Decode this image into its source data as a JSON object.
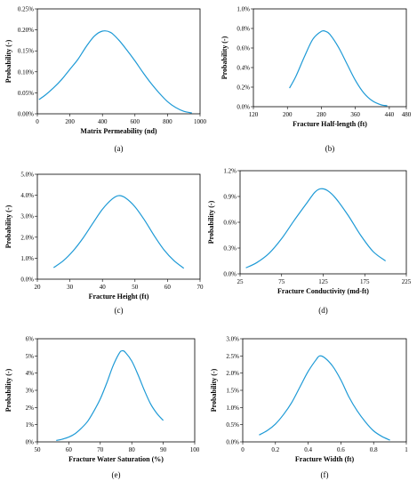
{
  "figure": {
    "panels": [
      "(a)",
      "(b)",
      "(c)",
      "(d)",
      "(e)",
      "(f)"
    ]
  },
  "colors": {
    "curve": "#1e9ad6",
    "axis": "#000000"
  },
  "chart_data": [
    {
      "type": "line",
      "xlabel": "Matrix Permeability (nd)",
      "ylabel": "Probability (-)",
      "xlim": [
        0,
        1000
      ],
      "ylim": [
        0,
        0.0025
      ],
      "xticks": [
        "0",
        "200",
        "400",
        "600",
        "800",
        "1000"
      ],
      "yticks": [
        "0.00%",
        "0.05%",
        "0.10%",
        "0.15%",
        "0.20%",
        "0.25%"
      ],
      "series": [
        {
          "x": [
            10,
            50,
            100,
            150,
            200,
            250,
            300,
            350,
            400,
            450,
            500,
            550,
            600,
            650,
            700,
            750,
            800,
            850,
            900,
            950
          ],
          "values": [
            0.00034,
            0.00045,
            0.00062,
            0.00082,
            0.00106,
            0.0013,
            0.0016,
            0.00185,
            0.00197,
            0.00194,
            0.00176,
            0.00152,
            0.00126,
            0.00098,
            0.00072,
            0.00049,
            0.00029,
            0.00015,
            6e-05,
            2e-05
          ]
        }
      ]
    },
    {
      "type": "line",
      "xlabel": "Fracture Half-length (ft)",
      "ylabel": "Probability (-)",
      "xlim": [
        120,
        480
      ],
      "ylim": [
        0,
        0.01
      ],
      "xticks": [
        "120",
        "200",
        "280",
        "360",
        "440",
        "480"
      ],
      "xtick_values": [
        120,
        200,
        280,
        360,
        440,
        480
      ],
      "yticks": [
        "0.0%",
        "0.2%",
        "0.4%",
        "0.6%",
        "0.8%",
        "1.0%"
      ],
      "series": [
        {
          "x": [
            205,
            220,
            240,
            260,
            280,
            290,
            300,
            320,
            340,
            360,
            380,
            400,
            420,
            435
          ],
          "values": [
            0.0019,
            0.0031,
            0.0051,
            0.0069,
            0.0077,
            0.0077,
            0.0074,
            0.0061,
            0.0044,
            0.0027,
            0.0014,
            0.0006,
            0.0002,
            0.0001
          ]
        }
      ]
    },
    {
      "type": "line",
      "xlabel": "Fracture Height (ft)",
      "ylabel": "Probability (-)",
      "xlim": [
        20,
        70
      ],
      "ylim": [
        0,
        0.05
      ],
      "xticks": [
        "20",
        "30",
        "40",
        "50",
        "60",
        "70"
      ],
      "yticks": [
        "0.0%",
        "1.0%",
        "2.0%",
        "3.0%",
        "4.0%",
        "5.0%"
      ],
      "series": [
        {
          "x": [
            25,
            28,
            31,
            34,
            37,
            40,
            43,
            45,
            47,
            50,
            53,
            56,
            59,
            62,
            65
          ],
          "values": [
            0.0055,
            0.0088,
            0.0135,
            0.0195,
            0.0265,
            0.0333,
            0.0382,
            0.0398,
            0.0388,
            0.0345,
            0.028,
            0.0205,
            0.0138,
            0.0088,
            0.0052
          ]
        }
      ]
    },
    {
      "type": "line",
      "xlabel": "Fracture Conductivity (md-ft)",
      "ylabel": "Probability (-)",
      "xlim": [
        25,
        225
      ],
      "ylim": [
        0,
        0.012
      ],
      "xticks": [
        "25",
        "75",
        "125",
        "175",
        "225"
      ],
      "yticks": [
        "0.0%",
        "0.3%",
        "0.6%",
        "0.9%",
        "1.2%"
      ],
      "series": [
        {
          "x": [
            32,
            45,
            60,
            75,
            90,
            105,
            115,
            122,
            130,
            140,
            155,
            170,
            185,
            200
          ],
          "values": [
            0.0007,
            0.0013,
            0.0024,
            0.0041,
            0.0062,
            0.0082,
            0.0095,
            0.0099,
            0.0097,
            0.0088,
            0.0068,
            0.0045,
            0.0026,
            0.0015
          ]
        }
      ]
    },
    {
      "type": "line",
      "xlabel": "Fracture Water Saturation (%)",
      "ylabel": "Probability (-)",
      "xlim": [
        50,
        100
      ],
      "ylim": [
        0,
        0.06
      ],
      "xticks": [
        "50",
        "60",
        "70",
        "80",
        "90",
        "100"
      ],
      "yticks": [
        "0%",
        "1%",
        "2%",
        "3%",
        "4%",
        "5%",
        "6%"
      ],
      "series": [
        {
          "x": [
            56,
            58,
            60,
            62,
            64,
            66,
            68,
            70,
            72,
            74,
            76,
            77,
            78,
            80,
            82,
            84,
            86,
            88,
            90
          ],
          "values": [
            0.0008,
            0.0016,
            0.0028,
            0.0048,
            0.008,
            0.012,
            0.018,
            0.025,
            0.034,
            0.044,
            0.0515,
            0.053,
            0.052,
            0.047,
            0.039,
            0.03,
            0.022,
            0.0165,
            0.0125
          ]
        }
      ]
    },
    {
      "type": "line",
      "xlabel": "Fracture Width (ft)",
      "ylabel": "Probability (-)",
      "xlim": [
        0,
        1
      ],
      "ylim": [
        0,
        0.03
      ],
      "xticks": [
        "0",
        "0.2",
        "0.4",
        "0.6",
        "0.8",
        "1"
      ],
      "yticks": [
        "0.0%",
        "0.5%",
        "1.0%",
        "1.5%",
        "2.0%",
        "2.5%",
        "3.0%"
      ],
      "series": [
        {
          "x": [
            0.1,
            0.15,
            0.2,
            0.25,
            0.3,
            0.35,
            0.4,
            0.45,
            0.47,
            0.5,
            0.55,
            0.6,
            0.65,
            0.7,
            0.75,
            0.8,
            0.85,
            0.9
          ],
          "values": [
            0.002,
            0.0033,
            0.0052,
            0.008,
            0.0115,
            0.016,
            0.0205,
            0.024,
            0.025,
            0.0245,
            0.022,
            0.018,
            0.013,
            0.009,
            0.0058,
            0.0032,
            0.0016,
            0.0005
          ]
        }
      ]
    }
  ]
}
